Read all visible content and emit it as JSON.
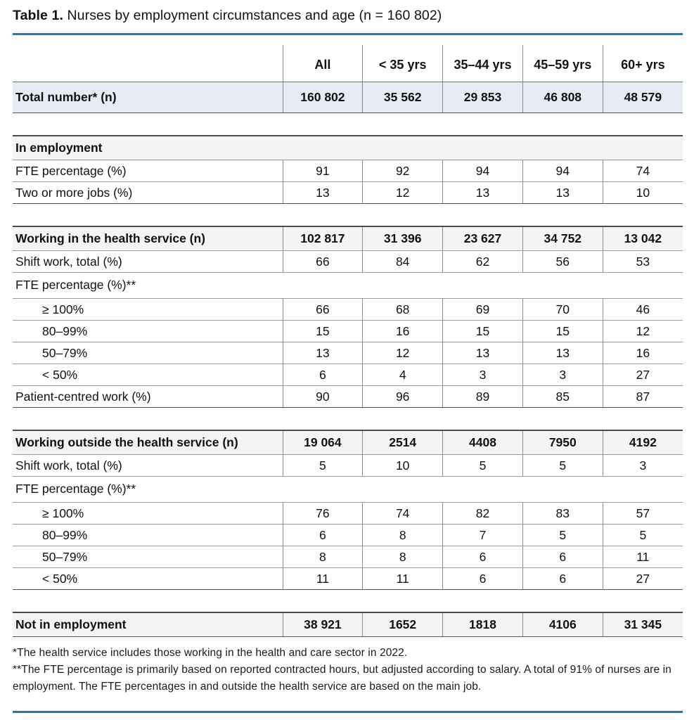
{
  "title": {
    "prefix": "Table 1.",
    "rest": " Nurses by employment circumstances and age (n = 160 802)"
  },
  "colors": {
    "accent": "#2279b4",
    "row_highlight": "#e7ecf4",
    "section_background": "#f4f4f4"
  },
  "table": {
    "columns": [
      "All",
      "< 35 yrs",
      "35–44 yrs",
      "45–59 yrs",
      "60+ yrs"
    ],
    "blocks": [
      {
        "has_header": true,
        "rows": [
          {
            "type": "total",
            "label": "Total number* (n)",
            "values": [
              "160 802",
              "35 562",
              "29 853",
              "46 808",
              "48 579"
            ]
          }
        ]
      },
      {
        "has_header": false,
        "rows": [
          {
            "type": "section",
            "label": "In employment"
          },
          {
            "type": "data",
            "label": "FTE percentage (%)",
            "values": [
              "91",
              "92",
              "94",
              "94",
              "74"
            ]
          },
          {
            "type": "data",
            "label": "Two or more jobs (%)",
            "values": [
              "13",
              "12",
              "13",
              "13",
              "10"
            ]
          }
        ]
      },
      {
        "has_header": false,
        "rows": [
          {
            "type": "section-values",
            "label": "Working in the health service (n)",
            "values": [
              "102 817",
              "31 396",
              "23 627",
              "34 752",
              "13 042"
            ]
          },
          {
            "type": "data",
            "label": "Shift work, total (%)",
            "values": [
              "66",
              "84",
              "62",
              "56",
              "53"
            ]
          },
          {
            "type": "span",
            "label": "FTE percentage (%)**"
          },
          {
            "type": "data-indent",
            "label": "≥ 100%",
            "values": [
              "66",
              "68",
              "69",
              "70",
              "46"
            ]
          },
          {
            "type": "data-indent",
            "label": "80–99%",
            "values": [
              "15",
              "16",
              "15",
              "15",
              "12"
            ]
          },
          {
            "type": "data-indent",
            "label": "50–79%",
            "values": [
              "13",
              "12",
              "13",
              "13",
              "16"
            ]
          },
          {
            "type": "data-indent",
            "label": "< 50%",
            "values": [
              "6",
              "4",
              "3",
              "3",
              "27"
            ]
          },
          {
            "type": "data",
            "label": "Patient-centred work (%)",
            "values": [
              "90",
              "96",
              "89",
              "85",
              "87"
            ]
          }
        ]
      },
      {
        "has_header": false,
        "rows": [
          {
            "type": "section-values",
            "label": "Working outside the health service (n)",
            "values": [
              "19 064",
              "2514",
              "4408",
              "7950",
              "4192"
            ]
          },
          {
            "type": "data",
            "label": "Shift work, total (%)",
            "values": [
              "5",
              "10",
              "5",
              "5",
              "3"
            ]
          },
          {
            "type": "span",
            "label": "FTE percentage (%)**"
          },
          {
            "type": "data-indent",
            "label": "≥ 100%",
            "values": [
              "76",
              "74",
              "82",
              "83",
              "57"
            ]
          },
          {
            "type": "data-indent",
            "label": "80–99%",
            "values": [
              "6",
              "8",
              "7",
              "5",
              "5"
            ]
          },
          {
            "type": "data-indent",
            "label": "50–79%",
            "values": [
              "8",
              "8",
              "6",
              "6",
              "11"
            ]
          },
          {
            "type": "data-indent",
            "label": "< 50%",
            "values": [
              "11",
              "11",
              "6",
              "6",
              "27"
            ]
          }
        ]
      },
      {
        "has_header": false,
        "rows": [
          {
            "type": "section-values",
            "label": "Not in employment",
            "values": [
              "38 921",
              "1652",
              "1818",
              "4106",
              "31 345"
            ]
          }
        ]
      }
    ]
  },
  "footnotes": [
    "*The health service includes those working in the health and care sector in 2022.",
    "**The FTE percentage is primarily based on reported contracted hours, but adjusted according to salary. A total of 91% of nurses are in employment. The FTE percentages in and outside the health service are based on the main job."
  ]
}
